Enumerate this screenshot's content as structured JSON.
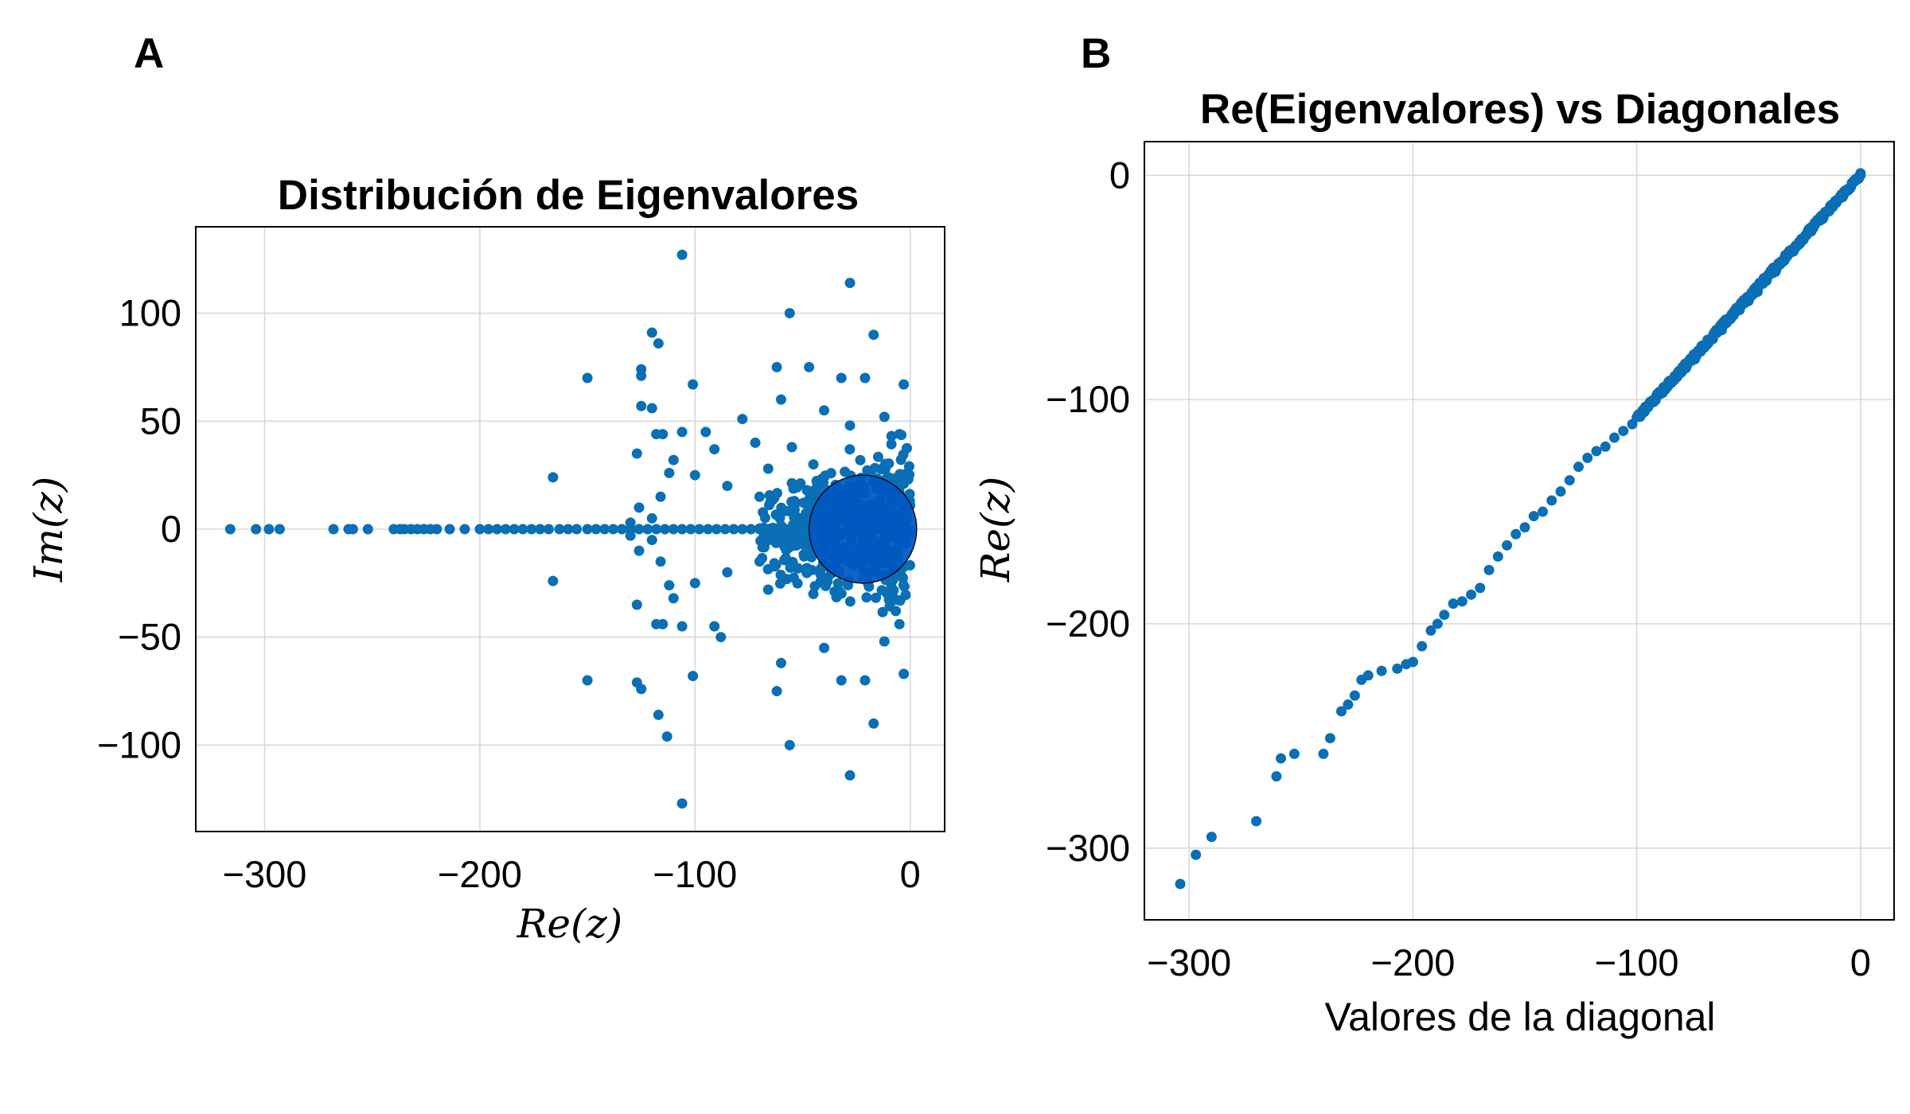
{
  "chart_data": [
    {
      "panel_label": "A",
      "type": "scatter",
      "title": "Distribución de Eigenvalores",
      "xlabel": "Re(z)",
      "ylabel": "Im(z)",
      "xlim": [
        -332,
        16
      ],
      "ylim": [
        -140,
        140
      ],
      "xticks": [
        -300,
        -200,
        -100,
        0
      ],
      "yticks": [
        -100,
        -50,
        0,
        50,
        100
      ],
      "x_tick_labels": [
        "−300",
        "−200",
        "−100",
        "0"
      ],
      "y_tick_labels": [
        "−100",
        "−50",
        "0",
        "50",
        "100"
      ],
      "grid": true,
      "marker_color": "#0a6fb5",
      "circle": {
        "center": [
          -22,
          0
        ],
        "radius": 25,
        "fill": "#0057c2",
        "stroke": "#000000"
      },
      "real_axis_points": [
        -316,
        -304,
        -298,
        -293,
        -268,
        -261,
        -259,
        -252,
        -240,
        -237,
        -235,
        -232,
        -229,
        -226,
        -223,
        -220,
        -214,
        -207,
        -200,
        -196,
        -192,
        -188,
        -184,
        -180,
        -176,
        -172,
        -168,
        -163,
        -159,
        -155,
        -150,
        -146,
        -142,
        -138,
        -134,
        -130,
        -126,
        -122,
        -118,
        -114,
        -110,
        -106,
        -102,
        -98,
        -94,
        -90,
        -86,
        -82,
        -78,
        -74,
        -70,
        -66,
        -62,
        -58,
        -54,
        -50
      ],
      "points": [
        [
          -106,
          127
        ],
        [
          -28,
          114
        ],
        [
          -56,
          100
        ],
        [
          -120,
          91
        ],
        [
          -17,
          90
        ],
        [
          -117,
          86
        ],
        [
          -150,
          70
        ],
        [
          -125,
          74
        ],
        [
          -125,
          71
        ],
        [
          -101,
          67
        ],
        [
          -62,
          75
        ],
        [
          -47,
          75
        ],
        [
          -32,
          70
        ],
        [
          -21,
          70
        ],
        [
          -3,
          67
        ],
        [
          -125,
          57
        ],
        [
          -120,
          56
        ],
        [
          -78,
          51
        ],
        [
          -95,
          45
        ],
        [
          -60,
          60
        ],
        [
          -40,
          55
        ],
        [
          -12,
          52
        ],
        [
          -118,
          44
        ],
        [
          -115,
          44
        ],
        [
          -106,
          45
        ],
        [
          -72,
          40
        ],
        [
          -5,
          44
        ],
        [
          -127,
          35
        ],
        [
          -110,
          32
        ],
        [
          -91,
          37
        ],
        [
          -55,
          38
        ],
        [
          -28,
          48
        ],
        [
          -166,
          24
        ],
        [
          -112,
          26
        ],
        [
          -100,
          25
        ],
        [
          -85,
          20
        ],
        [
          -66,
          28
        ],
        [
          -45,
          30
        ],
        [
          -116,
          15
        ],
        [
          -126,
          10
        ],
        [
          -70,
          15
        ],
        [
          -48,
          18
        ],
        [
          -35,
          8
        ],
        [
          -120,
          5
        ],
        [
          -130,
          3
        ],
        [
          -106,
          -127
        ],
        [
          -28,
          -114
        ],
        [
          -56,
          -100
        ],
        [
          -113,
          -96
        ],
        [
          -17,
          -90
        ],
        [
          -117,
          -86
        ],
        [
          -150,
          -70
        ],
        [
          -127,
          -71
        ],
        [
          -125,
          -74
        ],
        [
          -101,
          -68
        ],
        [
          -62,
          -75
        ],
        [
          -32,
          -70
        ],
        [
          -21,
          -70
        ],
        [
          -3,
          -67
        ],
        [
          -88,
          -50
        ],
        [
          -91,
          -45
        ],
        [
          -118,
          -44
        ],
        [
          -115,
          -44
        ],
        [
          -106,
          -45
        ],
        [
          -127,
          -35
        ],
        [
          -110,
          -32
        ],
        [
          -60,
          -62
        ],
        [
          -40,
          -55
        ],
        [
          -12,
          -52
        ],
        [
          -5,
          -44
        ],
        [
          -166,
          -24
        ],
        [
          -112,
          -26
        ],
        [
          -100,
          -25
        ],
        [
          -85,
          -20
        ],
        [
          -66,
          -28
        ],
        [
          -45,
          -30
        ],
        [
          -126,
          -10
        ],
        [
          -116,
          -15
        ],
        [
          -70,
          -15
        ],
        [
          -48,
          -18
        ],
        [
          -35,
          -8
        ],
        [
          -120,
          -5
        ],
        [
          -130,
          -3
        ]
      ],
      "dense_cloud": {
        "x_range": [
          -70,
          0
        ],
        "y_range": [
          -50,
          50
        ],
        "count": 520
      }
    },
    {
      "panel_label": "B",
      "type": "scatter",
      "title": "Re(Eigenvalores) vs Diagonales",
      "xlabel": "Valores de la diagonal",
      "ylabel": "Re(z)",
      "xlim": [
        -320,
        15
      ],
      "ylim": [
        -332,
        15
      ],
      "xticks": [
        -300,
        -200,
        -100,
        0
      ],
      "yticks": [
        -300,
        -200,
        -100,
        0
      ],
      "x_tick_labels": [
        "−300",
        "−200",
        "−100",
        "0"
      ],
      "y_tick_labels": [
        "−300",
        "−200",
        "−100",
        "0"
      ],
      "grid": true,
      "marker_color": "#0a6fb5",
      "points": [
        [
          -304,
          -316
        ],
        [
          -297,
          -303
        ],
        [
          -290,
          -295
        ],
        [
          -270,
          -288
        ],
        [
          -261,
          -268
        ],
        [
          -259,
          -260
        ],
        [
          -253,
          -258
        ],
        [
          -240,
          -258
        ],
        [
          -237,
          -251
        ],
        [
          -232,
          -239
        ],
        [
          -229,
          -236
        ],
        [
          -226,
          -232
        ],
        [
          -223,
          -225
        ],
        [
          -220,
          -223
        ],
        [
          -214,
          -221
        ],
        [
          -207,
          -220
        ],
        [
          -203,
          -218
        ],
        [
          -200,
          -217
        ],
        [
          -196,
          -210
        ],
        [
          -192,
          -203
        ],
        [
          -189,
          -200
        ],
        [
          -186,
          -196
        ],
        [
          -182,
          -191
        ],
        [
          -178,
          -190
        ],
        [
          -174,
          -187
        ],
        [
          -170,
          -184
        ],
        [
          -166,
          -176
        ],
        [
          -162,
          -170
        ],
        [
          -158,
          -165
        ],
        [
          -154,
          -160
        ],
        [
          -150,
          -157
        ],
        [
          -146,
          -152
        ],
        [
          -142,
          -150
        ],
        [
          -138,
          -145
        ],
        [
          -134,
          -141
        ],
        [
          -130,
          -136
        ],
        [
          -126,
          -130
        ],
        [
          -122,
          -126
        ],
        [
          -118,
          -123
        ],
        [
          -114,
          -121
        ],
        [
          -110,
          -117
        ],
        [
          -106,
          -114
        ],
        [
          -102,
          -111
        ],
        [
          -98,
          -106
        ],
        [
          -94,
          -101
        ],
        [
          -90,
          -97
        ],
        [
          -86,
          -94
        ],
        [
          -82,
          -90
        ],
        [
          -78,
          -86
        ],
        [
          -74,
          -82
        ],
        [
          -70,
          -77
        ],
        [
          -66,
          -73
        ],
        [
          -62,
          -69
        ],
        [
          -58,
          -64
        ],
        [
          -54,
          -60
        ],
        [
          -50,
          -56
        ],
        [
          -46,
          -52
        ],
        [
          -42,
          -47
        ],
        [
          -38,
          -43
        ],
        [
          -34,
          -38
        ],
        [
          -30,
          -34
        ],
        [
          -26,
          -29
        ],
        [
          -22,
          -25
        ],
        [
          -18,
          -20
        ],
        [
          -14,
          -16
        ],
        [
          -10,
          -11
        ],
        [
          -6,
          -7
        ],
        [
          -3,
          -3
        ],
        [
          0,
          0
        ]
      ],
      "dense_line": {
        "x_range": [
          -100,
          0
        ],
        "count": 260
      }
    }
  ]
}
